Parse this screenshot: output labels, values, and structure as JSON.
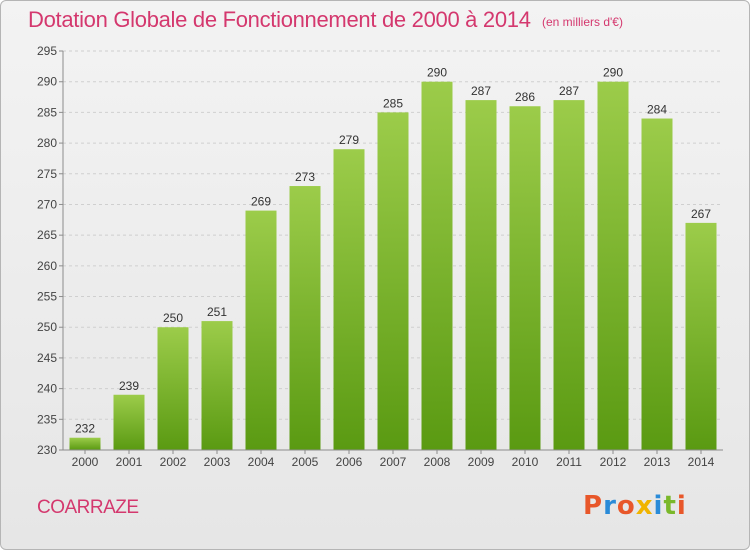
{
  "header": {
    "title": "Dotation Globale de Fonctionnement de 2000 à 2014",
    "unit": "(en milliers d'€)"
  },
  "footer": {
    "commune": "COARRAZE",
    "logo_text": "Proxiti"
  },
  "colors": {
    "title": "#d4386e",
    "bar_top": "#9ccc4a",
    "bar_bottom": "#5a9a12",
    "grid": "#cfcfcf",
    "axis": "#8c8c8c",
    "logo": [
      "#e8572a",
      "#2a8bd8",
      "#e8572a",
      "#f0b400",
      "#2a8bd8",
      "#7ab82a",
      "#e8572a"
    ]
  },
  "chart_data": {
    "type": "bar",
    "title": "Dotation Globale de Fonctionnement de 2000 à 2014",
    "subtitle": "(en milliers d'€)",
    "xlabel": "",
    "ylabel": "",
    "categories": [
      "2000",
      "2001",
      "2002",
      "2003",
      "2004",
      "2005",
      "2006",
      "2007",
      "2008",
      "2009",
      "2010",
      "2011",
      "2012",
      "2013",
      "2014"
    ],
    "values": [
      232,
      239,
      250,
      251,
      269,
      273,
      279,
      285,
      290,
      287,
      286,
      287,
      290,
      284,
      267
    ],
    "ylim": [
      230,
      295
    ],
    "ytick_step": 5,
    "grid": true,
    "data_labels": true
  }
}
